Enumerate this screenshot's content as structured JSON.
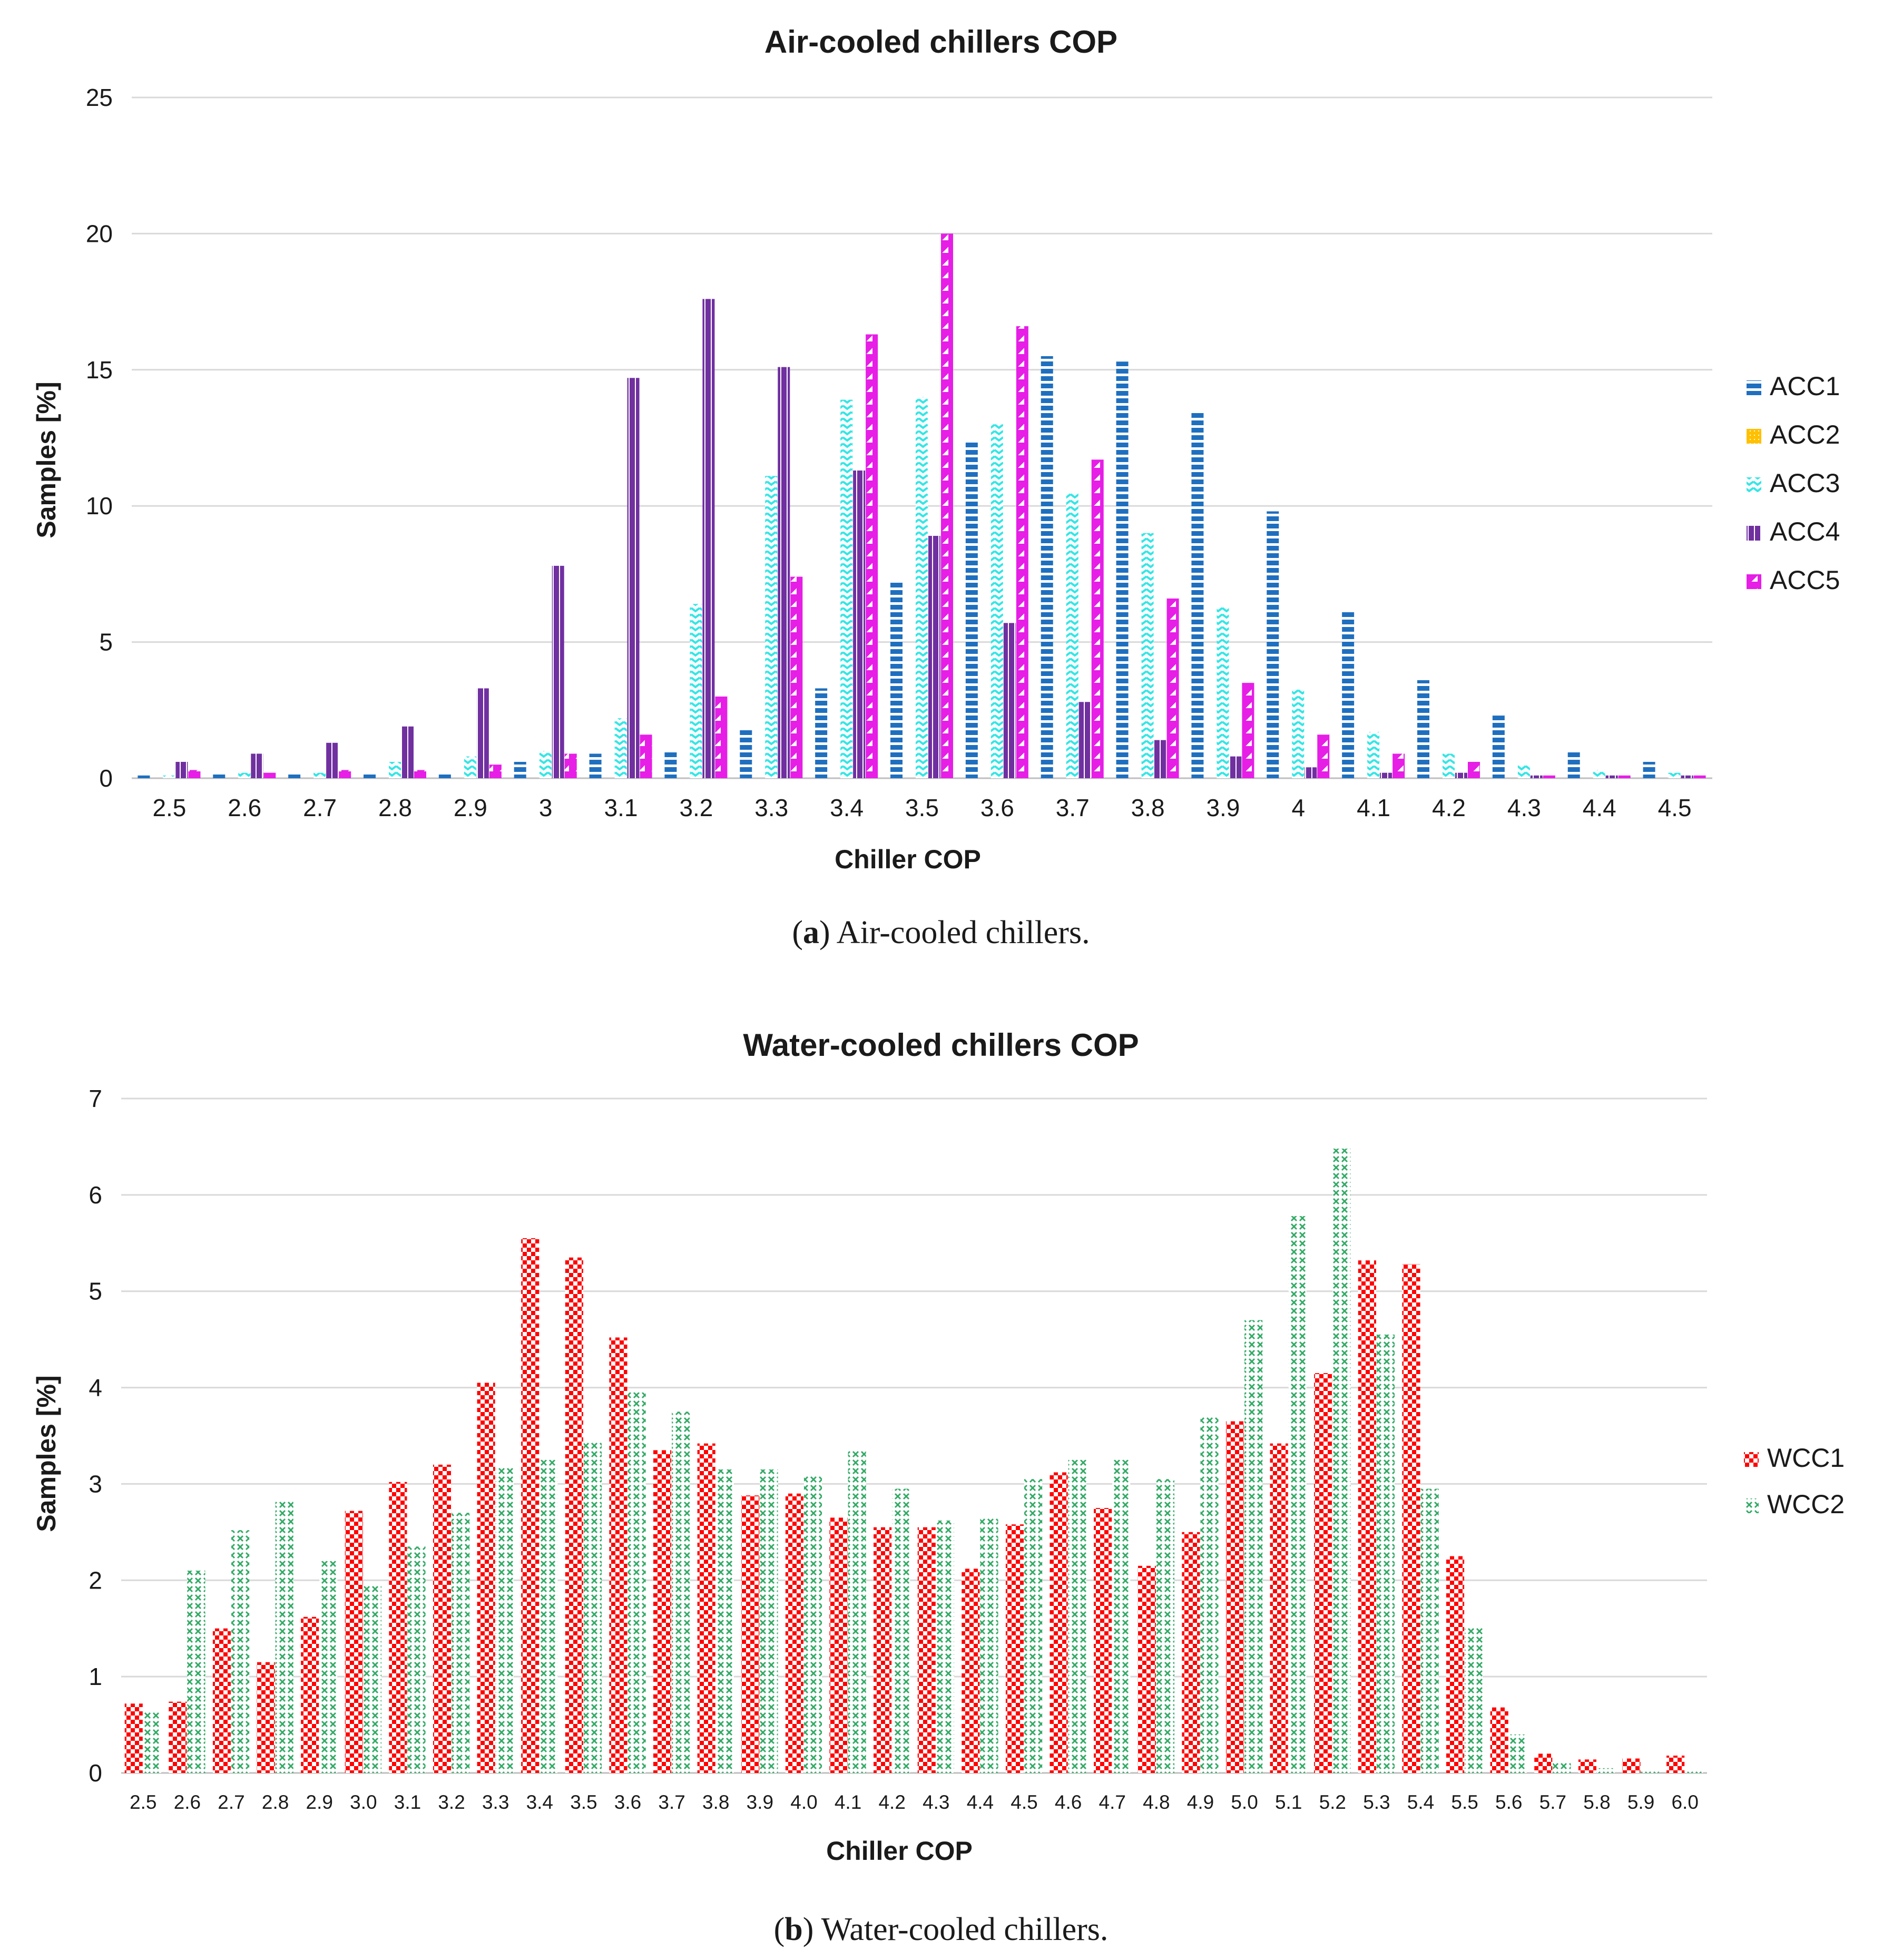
{
  "colors": {
    "ACC1": "#1f6fbf",
    "ACC2": "#ffc000",
    "ACC3": "#33e6e6",
    "ACC4": "#7030a0",
    "ACC5": "#e61ee6",
    "WCC1": "#ff0000",
    "WCC2": "#33aa66"
  },
  "captions": {
    "a_label": "a",
    "a_text": " Air-cooled chillers.",
    "b_label": "b",
    "b_text": " Water-cooled chillers."
  },
  "chart_data": [
    {
      "type": "bar",
      "title": "Air-cooled chillers COP",
      "xlabel": "Chiller COP",
      "ylabel": "Samples [%]",
      "ylim": [
        0,
        25
      ],
      "yticks": [
        "0",
        "5",
        "10",
        "15",
        "20",
        "25"
      ],
      "legend_position": "right",
      "categories": [
        "2.5",
        "2.6",
        "2.7",
        "2.8",
        "2.9",
        "3",
        "3.1",
        "3.2",
        "3.3",
        "3.4",
        "3.5",
        "3.6",
        "3.7",
        "3.8",
        "3.9",
        "4",
        "4.1",
        "4.2",
        "4.3",
        "4.4",
        "4.5"
      ],
      "series": [
        {
          "name": "ACC1",
          "values": [
            0.1,
            0.2,
            0.2,
            0.2,
            0.2,
            0.6,
            0.9,
            1.0,
            1.8,
            3.3,
            7.2,
            12.4,
            15.5,
            15.3,
            13.5,
            9.8,
            6.1,
            3.6,
            2.3,
            1.0,
            0.6
          ]
        },
        {
          "name": "ACC2",
          "values": [
            0,
            0,
            0,
            0,
            0,
            0,
            0,
            0,
            0,
            0,
            0,
            0,
            0,
            0,
            0,
            0,
            0,
            0,
            0,
            0,
            0
          ]
        },
        {
          "name": "ACC3",
          "values": [
            0.1,
            0.2,
            0.2,
            0.6,
            0.8,
            1.0,
            2.2,
            6.4,
            11.1,
            13.9,
            14.0,
            13.0,
            10.5,
            9.0,
            6.3,
            3.3,
            1.7,
            0.9,
            0.5,
            0.3,
            0.2
          ]
        },
        {
          "name": "ACC4",
          "values": [
            0.6,
            0.9,
            1.3,
            1.9,
            3.3,
            7.8,
            14.7,
            17.6,
            15.1,
            11.3,
            8.9,
            5.7,
            2.8,
            1.4,
            0.8,
            0.4,
            0.2,
            0.2,
            0.1,
            0.1,
            0.1
          ]
        },
        {
          "name": "ACC5",
          "values": [
            0.3,
            0.2,
            0.3,
            0.3,
            0.5,
            0.9,
            1.6,
            3.0,
            7.4,
            16.3,
            20.0,
            16.6,
            11.7,
            6.6,
            3.5,
            1.6,
            0.9,
            0.6,
            0.1,
            0.1,
            0.1
          ]
        }
      ]
    },
    {
      "type": "bar",
      "title": "Water-cooled chillers COP",
      "xlabel": "Chiller COP",
      "ylabel": "Samples [%]",
      "ylim": [
        0,
        7
      ],
      "yticks": [
        "0",
        "1",
        "2",
        "3",
        "4",
        "5",
        "6",
        "7"
      ],
      "legend_position": "right",
      "categories": [
        "2.5",
        "2.6",
        "2.7",
        "2.8",
        "2.9",
        "3.0",
        "3.1",
        "3.2",
        "3.3",
        "3.4",
        "3.5",
        "3.6",
        "3.7",
        "3.8",
        "3.9",
        "4.0",
        "4.1",
        "4.2",
        "4.3",
        "4.4",
        "4.5",
        "4.6",
        "4.7",
        "4.8",
        "4.9",
        "5.0",
        "5.1",
        "5.2",
        "5.3",
        "5.4",
        "5.5",
        "5.6",
        "5.7",
        "5.8",
        "5.9",
        "6.0"
      ],
      "series": [
        {
          "name": "WCC1",
          "values": [
            0.72,
            0.74,
            1.5,
            1.15,
            1.62,
            2.72,
            3.02,
            3.2,
            4.05,
            5.55,
            5.35,
            4.52,
            3.35,
            3.42,
            2.88,
            2.9,
            2.65,
            2.55,
            2.55,
            2.12,
            2.58,
            3.12,
            2.75,
            2.15,
            2.5,
            3.65,
            3.42,
            4.15,
            5.32,
            5.28,
            2.25,
            0.68,
            0.2,
            0.14,
            0.15,
            0.18
          ]
        },
        {
          "name": "WCC2",
          "values": [
            0.65,
            2.1,
            2.52,
            2.82,
            2.2,
            1.95,
            2.35,
            2.7,
            3.18,
            3.25,
            3.45,
            3.95,
            3.75,
            3.15,
            3.15,
            3.1,
            3.35,
            2.95,
            2.62,
            2.65,
            3.05,
            3.25,
            3.25,
            3.05,
            3.7,
            4.7,
            5.78,
            6.48,
            4.55,
            2.95,
            1.52,
            0.4,
            0.12,
            0.05,
            0.03,
            0.02
          ]
        }
      ]
    }
  ]
}
